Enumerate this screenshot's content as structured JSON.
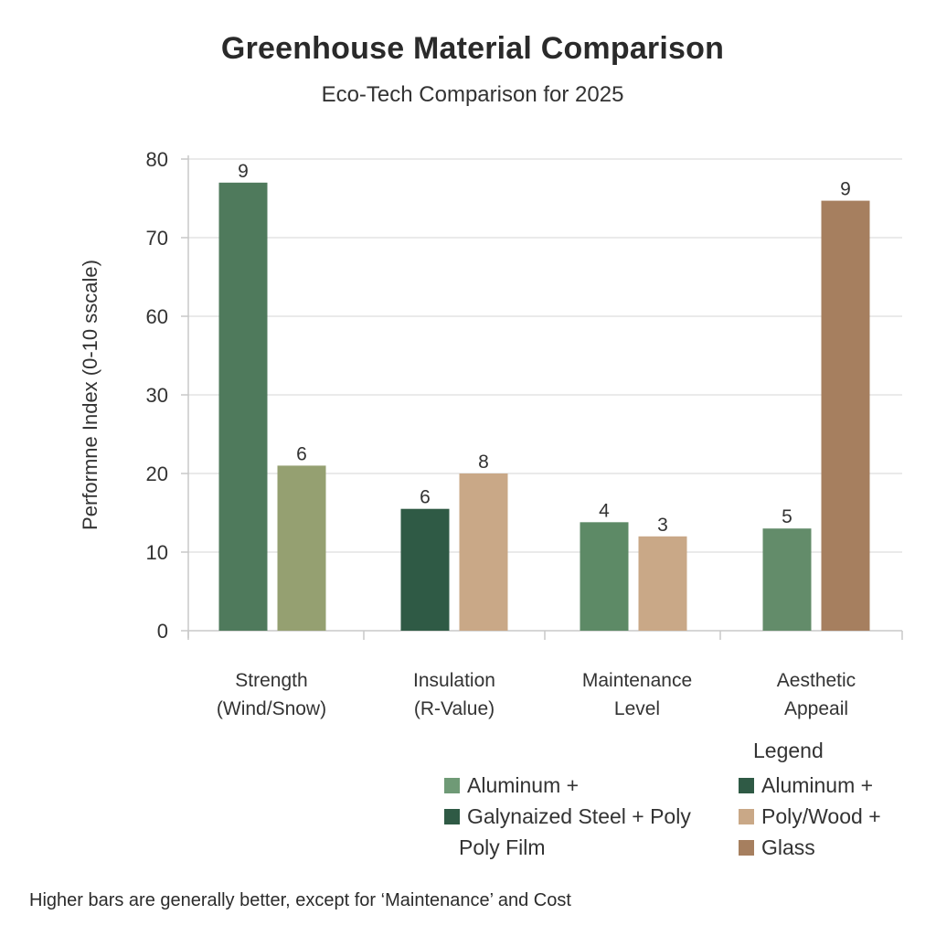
{
  "chart_data": {
    "type": "bar",
    "title": "Greenhouse Material Comparison",
    "subtitle": "Eco-Tech Comparison for 2025",
    "xlabel": "",
    "ylabel": "Performne Index (0-10 sscale)",
    "y_ticks": [
      "0",
      "10",
      "20",
      "30",
      "60",
      "70",
      "80"
    ],
    "ylim_tick_positions": [
      0,
      6
    ],
    "grid": true,
    "categories": [
      [
        "Strength",
        "(Wind/Snow)"
      ],
      [
        "Insulation",
        "(R-Value)"
      ],
      [
        "Maintenance",
        "Level"
      ],
      [
        "Aesthetic",
        "Appeail"
      ]
    ],
    "bars": [
      {
        "category": 0,
        "slot": 0,
        "color": "#4f7a5c",
        "tick_position": 5.7,
        "label": "9"
      },
      {
        "category": 0,
        "slot": 1,
        "color": "#95a071",
        "tick_position": 2.1,
        "label": "6"
      },
      {
        "category": 1,
        "slot": 0,
        "color": "#2f5a45",
        "tick_position": 1.55,
        "label": "6"
      },
      {
        "category": 1,
        "slot": 1,
        "color": "#c9a887",
        "tick_position": 2.0,
        "label": "8"
      },
      {
        "category": 2,
        "slot": 0,
        "color": "#5d8a66",
        "tick_position": 1.38,
        "label": "4"
      },
      {
        "category": 2,
        "slot": 1,
        "color": "#c9a887",
        "tick_position": 1.2,
        "label": "3"
      },
      {
        "category": 3,
        "slot": 0,
        "color": "#638c6a",
        "tick_position": 1.3,
        "label": "5"
      },
      {
        "category": 3,
        "slot": 1,
        "color": "#a67f5f",
        "tick_position": 5.47,
        "label": "9"
      }
    ],
    "approx_axis_values": [
      77,
      21,
      15,
      20,
      13.5,
      12,
      12.5,
      74.5
    ],
    "legend": {
      "title": "Legend",
      "placement": "bottom-right",
      "left_column": [
        {
          "label": "Aluminum +",
          "color": "#6f9a76"
        },
        {
          "label": "Galynaized Steel + Poly",
          "color": "#2f5a45"
        },
        {
          "label": "Poly Film",
          "color": null
        }
      ],
      "right_column": [
        {
          "label": "Aluminum +",
          "color": "#2f5a45"
        },
        {
          "label": "Poly/Wood +",
          "color": "#c9a887"
        },
        {
          "label": "Glass",
          "color": "#a67f5f"
        }
      ]
    },
    "footnote": "Higher bars are generally better, except for ‘Maintenance’ and Cost"
  }
}
